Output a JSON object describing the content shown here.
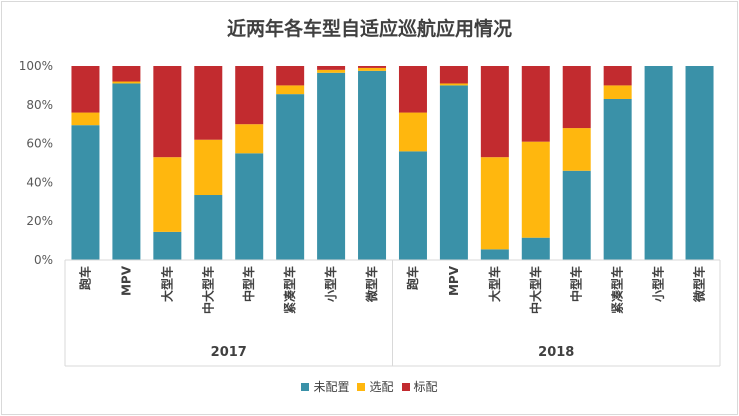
{
  "chart_data": {
    "type": "bar",
    "stacked": true,
    "title": "近两年各车型自适应巡航应用情况",
    "ylim": [
      0,
      100
    ],
    "yticks": [
      "0%",
      "20%",
      "40%",
      "60%",
      "80%",
      "100%"
    ],
    "groups": [
      {
        "name": "2017",
        "categories": [
          "跑车",
          "MPV",
          "大型车",
          "中大型车",
          "中型车",
          "紧凑型车",
          "小型车",
          "微型车"
        ]
      },
      {
        "name": "2018",
        "categories": [
          "跑车",
          "MPV",
          "大型车",
          "中大型车",
          "中型车",
          "紧凑型车",
          "小型车",
          "微型车"
        ]
      }
    ],
    "series": [
      {
        "name": "未配置",
        "color": "#3a91a8",
        "values": [
          69.5,
          91,
          14.5,
          33.5,
          55,
          85.5,
          96.5,
          97.5,
          56,
          90,
          5.5,
          11.5,
          46,
          83,
          100,
          100
        ]
      },
      {
        "name": "选配",
        "color": "#ffb70e",
        "values": [
          6.5,
          1,
          38.5,
          28.5,
          15,
          4.5,
          1.5,
          1.5,
          20,
          1,
          47.5,
          49.5,
          22,
          7,
          0,
          0
        ]
      },
      {
        "name": "标配",
        "color": "#c22b2f",
        "values": [
          24,
          8,
          47,
          38,
          30,
          10,
          2,
          1,
          24,
          9,
          47,
          39,
          32,
          10,
          0,
          0
        ]
      }
    ],
    "legend": "bottom"
  }
}
